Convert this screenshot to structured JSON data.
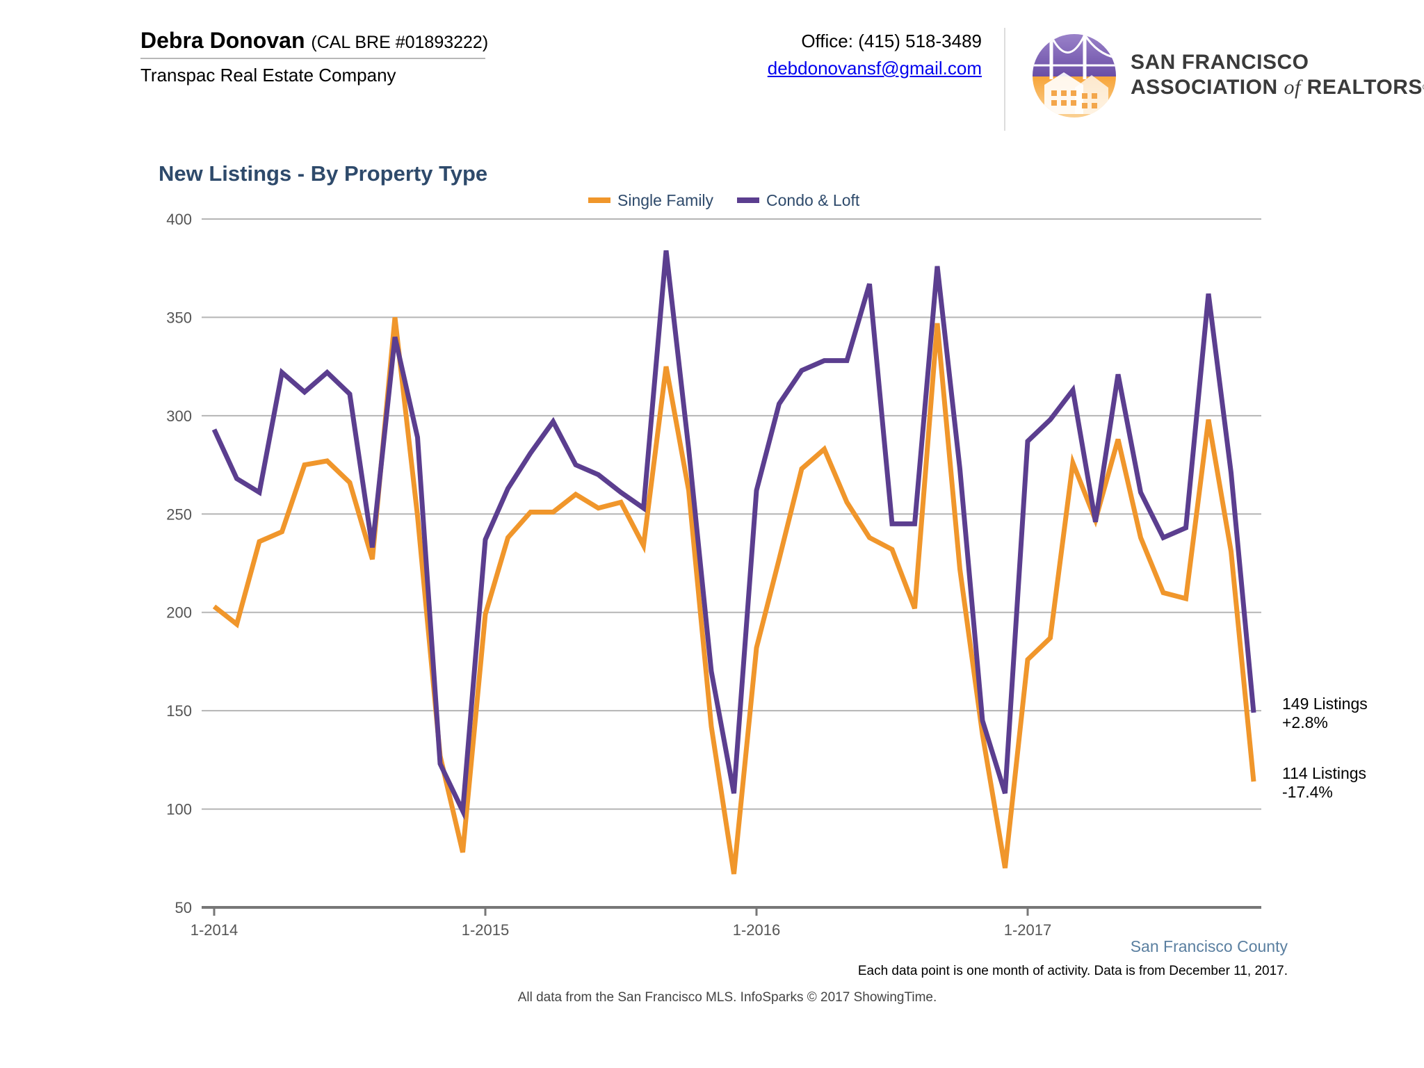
{
  "header": {
    "agent_name": "Debra Donovan",
    "agent_license": "(CAL BRE #01893222)",
    "company": "Transpac Real Estate Company",
    "office": "Office: (415) 518-3489",
    "email": "debdonovansf@gmail.com",
    "logo_line1": "SAN FRANCISCO",
    "logo_assoc": "ASSOCIATION",
    "logo_of": "of",
    "logo_realtors": "REALTORS",
    "logo_reg": "®"
  },
  "chart_data": {
    "type": "line",
    "title": "New Listings - By Property Type",
    "xlabel": "",
    "ylabel": "",
    "ylim": [
      50,
      400
    ],
    "yticks": [
      50,
      100,
      150,
      200,
      250,
      300,
      350,
      400
    ],
    "xtick_labels": [
      "1-2014",
      "1-2015",
      "1-2016",
      "1-2017"
    ],
    "xtick_index": [
      0,
      12,
      24,
      36
    ],
    "x_start": "1-2014",
    "months": 48,
    "grid": true,
    "legend_position": "top-center",
    "series": [
      {
        "name": "Single Family",
        "color": "#f0962b",
        "values": [
          203,
          194,
          236,
          241,
          275,
          277,
          266,
          227,
          350,
          249,
          127,
          78,
          199,
          238,
          251,
          251,
          260,
          253,
          256,
          234,
          325,
          262,
          142,
          67,
          182,
          227,
          273,
          283,
          256,
          238,
          232,
          202,
          347,
          222,
          138,
          70,
          176,
          187,
          276,
          247,
          288,
          238,
          210,
          207,
          298,
          231,
          114
        ]
      },
      {
        "name": "Condo & Loft",
        "color": "#5b3e8f",
        "values": [
          293,
          268,
          261,
          322,
          312,
          322,
          311,
          233,
          340,
          289,
          123,
          99,
          237,
          263,
          281,
          297,
          275,
          270,
          261,
          253,
          384,
          283,
          170,
          108,
          262,
          306,
          323,
          328,
          328,
          367,
          245,
          245,
          376,
          273,
          145,
          108,
          287,
          298,
          313,
          246,
          321,
          261,
          238,
          243,
          362,
          271,
          149
        ]
      }
    ],
    "annotations": [
      {
        "line1": "149 Listings",
        "line2": "+2.8%"
      },
      {
        "line1": "114 Listings",
        "line2": "-17.4%"
      }
    ],
    "county": "San Francisco County",
    "note": "Each data point is one month of activity. Data is from December 11, 2017.",
    "source": "All data from the San Francisco MLS. InfoSparks © 2017 ShowingTime."
  }
}
